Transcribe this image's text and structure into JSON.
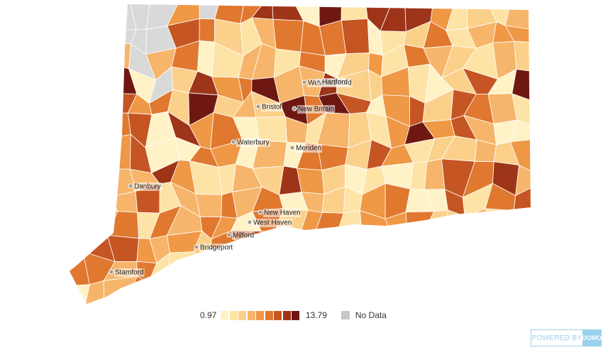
{
  "map": {
    "colors": {
      "scale": [
        "#fff2c6",
        "#fde3a6",
        "#fbd08a",
        "#f6b56a",
        "#ef9846",
        "#e0782f",
        "#c55623",
        "#9e3418",
        "#6f1812"
      ],
      "no_data": "#d9d9d9",
      "city_dot": "#9a9a9a"
    },
    "cities": [
      {
        "name": "West Hartford"
      },
      {
        "name": "Hartford"
      },
      {
        "name": "Bristol"
      },
      {
        "name": "New Britain"
      },
      {
        "name": "Waterbury"
      },
      {
        "name": "Meriden"
      },
      {
        "name": "Danbury"
      },
      {
        "name": "New Haven"
      },
      {
        "name": "West Haven"
      },
      {
        "name": "Milford"
      },
      {
        "name": "Bridgeport"
      },
      {
        "name": "Stamford"
      }
    ]
  },
  "legend": {
    "min_label": "0.97",
    "max_label": "13.79",
    "no_data_label": "No Data",
    "steps": 9
  },
  "branding": {
    "powered_by": "POWERED BY",
    "logo_text": "DOMO"
  }
}
